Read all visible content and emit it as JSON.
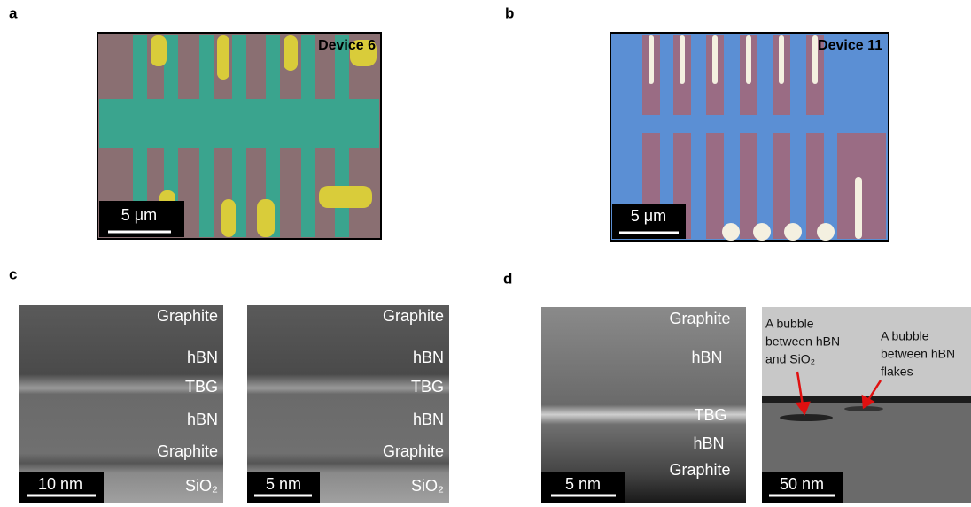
{
  "panels": [
    {
      "label": "a",
      "title": "Device 6",
      "scale_bar": "5 μm"
    },
    {
      "label": "b",
      "title": "Device 11",
      "scale_bar": "5 μm"
    },
    {
      "label": "c",
      "images": [
        {
          "layers": [
            "Graphite",
            "hBN",
            "TBG",
            "hBN",
            "Graphite",
            "SiO₂"
          ],
          "scale_bar": "10 nm"
        },
        {
          "layers": [
            "Graphite",
            "hBN",
            "TBG",
            "hBN",
            "Graphite",
            "SiO₂"
          ],
          "scale_bar": "5 nm"
        }
      ]
    },
    {
      "label": "d",
      "images": [
        {
          "layers": [
            "Graphite",
            "hBN",
            "TBG",
            "hBN",
            "Graphite"
          ],
          "scale_bar": "5 nm"
        },
        {
          "annotations": [
            [
              "A bubble",
              "between hBN",
              "and SiO₂"
            ],
            [
              "A bubble",
              "between hBN",
              "flakes"
            ]
          ],
          "scale_bar": "50 nm"
        }
      ]
    }
  ]
}
